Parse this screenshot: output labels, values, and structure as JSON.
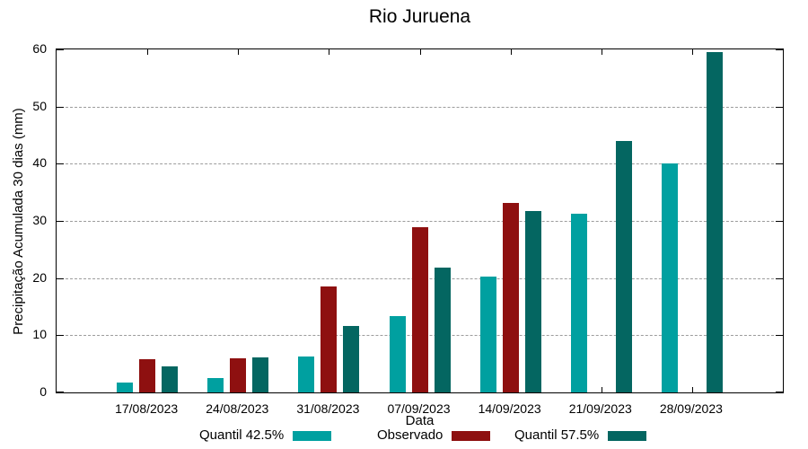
{
  "title": "Rio Juruena",
  "colors": {
    "quantil_425": "#00a0a0",
    "observado": "#8e1010",
    "quantil_575": "#046661",
    "grid": "#9c9c9c",
    "axis": "#000000",
    "background": "#ffffff"
  },
  "chart_data": {
    "type": "bar",
    "title": "Rio Juruena",
    "xlabel": "Data",
    "ylabel": "Precipitação Acumulada 30 dias (mm)",
    "categories": [
      "17/08/2023",
      "24/08/2023",
      "31/08/2023",
      "07/09/2023",
      "14/09/2023",
      "21/09/2023",
      "28/09/2023"
    ],
    "series": [
      {
        "name": "Quantil 42.5%",
        "color": "#00a0a0",
        "values": [
          1.7,
          2.5,
          6.3,
          13.3,
          20.2,
          31.2,
          40.1
        ]
      },
      {
        "name": "Observado",
        "color": "#8e1010",
        "values": [
          5.8,
          5.9,
          18.6,
          28.9,
          33.2,
          null,
          null
        ]
      },
      {
        "name": "Quantil 57.5%",
        "color": "#046661",
        "values": [
          4.5,
          6.1,
          11.6,
          21.8,
          31.8,
          44.0,
          59.6
        ]
      }
    ],
    "ylim": [
      0,
      60
    ],
    "yticks": [
      0,
      10,
      20,
      30,
      40,
      50,
      60
    ],
    "grid": true,
    "grid_style": "dashed",
    "legend_position": "bottom"
  }
}
